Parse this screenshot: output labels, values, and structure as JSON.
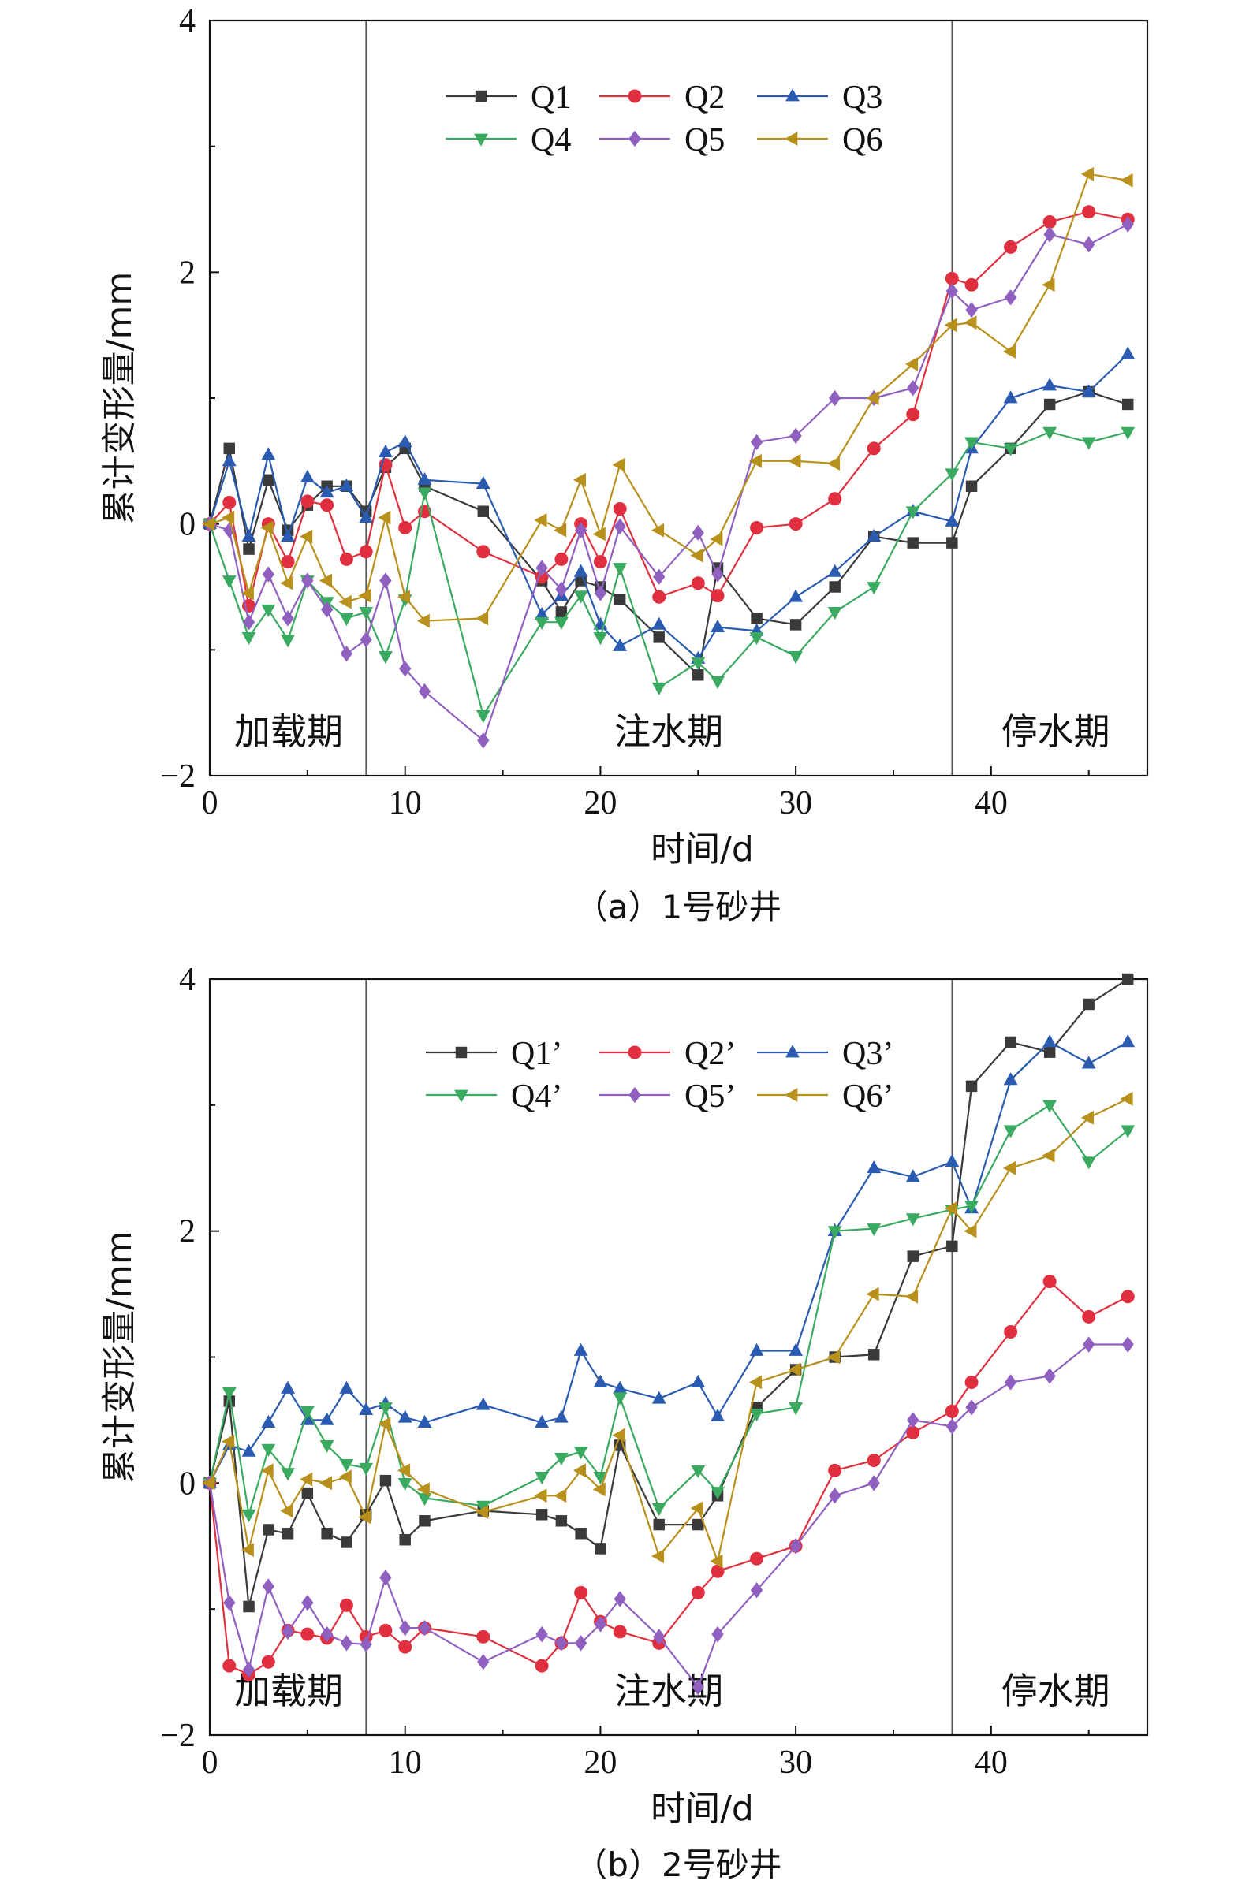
{
  "chart_data": [
    {
      "type": "line",
      "caption": "（a）1号砂井",
      "xlabel": "时间/d",
      "ylabel": "累计变形量/mm",
      "xlim": [
        0,
        48
      ],
      "ylim": [
        -2,
        4
      ],
      "xticks": [
        0,
        10,
        20,
        30,
        40
      ],
      "yticks": [
        -2,
        0,
        2,
        4
      ],
      "phase_boundaries": [
        8,
        38
      ],
      "phases": [
        "加载期",
        "注水期",
        "停水期"
      ],
      "legend_position": "top-center",
      "series": [
        {
          "name": "Q1",
          "color": "#3a3a3a",
          "marker": "square",
          "x": [
            0,
            1,
            2,
            3,
            4,
            5,
            6,
            7,
            8,
            9,
            10,
            11,
            14,
            17,
            18,
            19,
            20,
            21,
            23,
            25,
            26,
            28,
            30,
            32,
            34,
            36,
            38,
            39,
            41,
            43,
            45,
            47
          ],
          "y": [
            0,
            0.6,
            -0.2,
            0.35,
            -0.05,
            0.15,
            0.3,
            0.3,
            0.1,
            0.45,
            0.6,
            0.3,
            0.1,
            -0.45,
            -0.7,
            -0.45,
            -0.5,
            -0.6,
            -0.9,
            -1.2,
            -0.35,
            -0.75,
            -0.8,
            -0.5,
            -0.1,
            -0.15,
            -0.15,
            0.3,
            0.6,
            0.95,
            1.05,
            0.95
          ]
        },
        {
          "name": "Q2",
          "color": "#e03040",
          "marker": "circle",
          "x": [
            0,
            1,
            2,
            3,
            4,
            5,
            6,
            7,
            8,
            9,
            10,
            11,
            14,
            17,
            18,
            19,
            20,
            21,
            23,
            25,
            26,
            28,
            30,
            32,
            34,
            36,
            38,
            39,
            41,
            43,
            45,
            47
          ],
          "y": [
            0,
            0.17,
            -0.65,
            0.0,
            -0.3,
            0.18,
            0.15,
            -0.28,
            -0.22,
            0.47,
            -0.03,
            0.1,
            -0.22,
            -0.42,
            -0.28,
            0.0,
            -0.3,
            0.12,
            -0.58,
            -0.47,
            -0.57,
            -0.03,
            0.0,
            0.2,
            0.6,
            0.87,
            1.95,
            1.9,
            2.2,
            2.4,
            2.48,
            2.42
          ]
        },
        {
          "name": "Q3",
          "color": "#2a5bb0",
          "marker": "triangle-up",
          "x": [
            0,
            1,
            2,
            3,
            4,
            5,
            6,
            7,
            8,
            9,
            10,
            11,
            14,
            17,
            18,
            19,
            20,
            21,
            23,
            25,
            26,
            28,
            30,
            32,
            34,
            36,
            38,
            39,
            41,
            43,
            45,
            47
          ],
          "y": [
            0,
            0.5,
            -0.1,
            0.55,
            -0.1,
            0.37,
            0.25,
            0.3,
            0.05,
            0.57,
            0.65,
            0.35,
            0.32,
            -0.72,
            -0.57,
            -0.38,
            -0.8,
            -0.97,
            -0.8,
            -1.07,
            -0.82,
            -0.85,
            -0.58,
            -0.38,
            -0.1,
            0.1,
            0.02,
            0.6,
            1.0,
            1.1,
            1.05,
            1.35
          ]
        },
        {
          "name": "Q4",
          "color": "#3aaa60",
          "marker": "triangle-down",
          "x": [
            0,
            1,
            2,
            3,
            4,
            5,
            6,
            7,
            8,
            9,
            10,
            11,
            14,
            17,
            18,
            19,
            20,
            21,
            23,
            25,
            26,
            28,
            30,
            32,
            34,
            36,
            38,
            39,
            41,
            43,
            45,
            47
          ],
          "y": [
            0,
            -0.45,
            -0.9,
            -0.68,
            -0.92,
            -0.45,
            -0.62,
            -0.75,
            -0.7,
            -1.05,
            -0.6,
            0.25,
            -1.52,
            -0.78,
            -0.78,
            -0.57,
            -0.9,
            -0.35,
            -1.3,
            -1.1,
            -1.25,
            -0.9,
            -1.05,
            -0.7,
            -0.5,
            0.1,
            0.4,
            0.65,
            0.6,
            0.73,
            0.65,
            0.73
          ]
        },
        {
          "name": "Q5",
          "color": "#9060c0",
          "marker": "diamond",
          "x": [
            0,
            1,
            2,
            3,
            4,
            5,
            6,
            7,
            8,
            9,
            10,
            11,
            14,
            17,
            18,
            19,
            20,
            21,
            23,
            25,
            26,
            28,
            30,
            32,
            34,
            36,
            38,
            39,
            41,
            43,
            45,
            47
          ],
          "y": [
            0,
            -0.05,
            -0.78,
            -0.4,
            -0.75,
            -0.45,
            -0.68,
            -1.03,
            -0.92,
            -0.45,
            -1.15,
            -1.33,
            -1.72,
            -0.35,
            -0.52,
            -0.05,
            -0.55,
            -0.02,
            -0.42,
            -0.07,
            -0.4,
            0.65,
            0.7,
            1.0,
            1.0,
            1.08,
            1.85,
            1.7,
            1.8,
            2.3,
            2.22,
            2.38
          ]
        },
        {
          "name": "Q6",
          "color": "#b8901c",
          "marker": "triangle-left",
          "x": [
            0,
            1,
            2,
            3,
            4,
            5,
            6,
            7,
            8,
            9,
            10,
            11,
            14,
            17,
            18,
            19,
            20,
            21,
            23,
            25,
            26,
            28,
            30,
            32,
            34,
            36,
            38,
            39,
            41,
            43,
            45,
            47
          ],
          "y": [
            0,
            0.05,
            -0.55,
            -0.03,
            -0.47,
            -0.1,
            -0.45,
            -0.62,
            -0.57,
            0.05,
            -0.58,
            -0.77,
            -0.75,
            0.03,
            -0.05,
            0.35,
            -0.08,
            0.47,
            -0.05,
            -0.25,
            -0.12,
            0.5,
            0.5,
            0.48,
            1.0,
            1.27,
            1.58,
            1.6,
            1.37,
            1.9,
            2.78,
            2.73
          ]
        }
      ]
    },
    {
      "type": "line",
      "caption": "（b）2号砂井",
      "xlabel": "时间/d",
      "ylabel": "累计变形量/mm",
      "xlim": [
        0,
        48
      ],
      "ylim": [
        -2,
        4
      ],
      "xticks": [
        0,
        10,
        20,
        30,
        40
      ],
      "yticks": [
        -2,
        0,
        2,
        4
      ],
      "phase_boundaries": [
        8,
        38
      ],
      "phases": [
        "加载期",
        "注水期",
        "停水期"
      ],
      "legend_position": "top-center",
      "series": [
        {
          "name": "Q1’",
          "color": "#3a3a3a",
          "marker": "square",
          "x": [
            0,
            1,
            2,
            3,
            4,
            5,
            6,
            7,
            8,
            9,
            10,
            11,
            14,
            17,
            18,
            19,
            20,
            21,
            23,
            25,
            26,
            28,
            30,
            32,
            34,
            36,
            38,
            39,
            41,
            43,
            45,
            47
          ],
          "y": [
            0,
            0.65,
            -0.98,
            -0.37,
            -0.4,
            -0.08,
            -0.4,
            -0.47,
            -0.25,
            0.02,
            -0.45,
            -0.3,
            -0.22,
            -0.25,
            -0.3,
            -0.4,
            -0.52,
            0.3,
            -0.33,
            -0.33,
            -0.1,
            0.6,
            0.9,
            1.0,
            1.02,
            1.8,
            1.88,
            3.15,
            3.5,
            3.42,
            3.8,
            4.0
          ]
        },
        {
          "name": "Q2’",
          "color": "#e03040",
          "marker": "circle",
          "x": [
            0,
            1,
            2,
            3,
            4,
            5,
            6,
            7,
            8,
            9,
            10,
            11,
            14,
            17,
            18,
            19,
            20,
            21,
            23,
            25,
            26,
            28,
            30,
            32,
            34,
            36,
            38,
            39,
            41,
            43,
            45,
            47
          ],
          "y": [
            0,
            -1.45,
            -1.52,
            -1.42,
            -1.17,
            -1.2,
            -1.23,
            -0.97,
            -1.22,
            -1.17,
            -1.3,
            -1.15,
            -1.22,
            -1.45,
            -1.27,
            -0.87,
            -1.1,
            -1.18,
            -1.27,
            -0.87,
            -0.7,
            -0.6,
            -0.5,
            0.1,
            0.18,
            0.4,
            0.57,
            0.8,
            1.2,
            1.6,
            1.32,
            1.48
          ]
        },
        {
          "name": "Q3’",
          "color": "#2a5bb0",
          "marker": "triangle-up",
          "x": [
            0,
            1,
            2,
            3,
            4,
            5,
            6,
            7,
            8,
            9,
            10,
            11,
            14,
            17,
            18,
            19,
            20,
            21,
            23,
            25,
            26,
            28,
            30,
            32,
            34,
            36,
            38,
            39,
            41,
            43,
            45,
            47
          ],
          "y": [
            0,
            0.3,
            0.25,
            0.48,
            0.75,
            0.5,
            0.5,
            0.75,
            0.58,
            0.63,
            0.52,
            0.48,
            0.62,
            0.48,
            0.52,
            1.05,
            0.8,
            0.75,
            0.67,
            0.8,
            0.53,
            1.05,
            1.05,
            2.0,
            2.5,
            2.43,
            2.55,
            2.18,
            3.2,
            3.5,
            3.33,
            3.5
          ]
        },
        {
          "name": "Q4’",
          "color": "#3aaa60",
          "marker": "triangle-down",
          "x": [
            0,
            1,
            2,
            3,
            4,
            5,
            6,
            7,
            8,
            9,
            10,
            11,
            14,
            17,
            18,
            19,
            20,
            21,
            23,
            25,
            26,
            28,
            30,
            32,
            34,
            36,
            38,
            39,
            41,
            43,
            45,
            47
          ],
          "y": [
            0,
            0.72,
            -0.25,
            0.27,
            0.08,
            0.57,
            0.3,
            0.15,
            0.12,
            0.6,
            0.0,
            -0.12,
            -0.18,
            0.05,
            0.2,
            0.25,
            0.05,
            0.68,
            -0.2,
            0.1,
            -0.07,
            0.55,
            0.6,
            2.0,
            2.02,
            2.1,
            2.17,
            2.2,
            2.8,
            3.0,
            2.55,
            2.8
          ]
        },
        {
          "name": "Q5’",
          "color": "#9060c0",
          "marker": "diamond",
          "x": [
            0,
            1,
            2,
            3,
            4,
            5,
            6,
            7,
            8,
            9,
            10,
            11,
            14,
            17,
            18,
            19,
            20,
            21,
            23,
            25,
            26,
            28,
            30,
            32,
            34,
            36,
            38,
            39,
            41,
            43,
            45,
            47
          ],
          "y": [
            0,
            -0.95,
            -1.48,
            -0.82,
            -1.18,
            -0.95,
            -1.2,
            -1.27,
            -1.28,
            -0.75,
            -1.15,
            -1.15,
            -1.42,
            -1.2,
            -1.27,
            -1.27,
            -1.12,
            -0.92,
            -1.22,
            -1.62,
            -1.2,
            -0.85,
            -0.5,
            -0.1,
            0.0,
            0.5,
            0.45,
            0.6,
            0.8,
            0.85,
            1.1,
            1.1
          ]
        },
        {
          "name": "Q6’",
          "color": "#b8901c",
          "marker": "triangle-left",
          "x": [
            0,
            1,
            2,
            3,
            4,
            5,
            6,
            7,
            8,
            9,
            10,
            11,
            14,
            17,
            18,
            19,
            20,
            21,
            23,
            25,
            26,
            28,
            30,
            32,
            34,
            36,
            38,
            39,
            41,
            43,
            45,
            47
          ],
          "y": [
            0,
            0.33,
            -0.53,
            0.1,
            -0.22,
            0.03,
            0.0,
            0.05,
            -0.27,
            0.47,
            0.1,
            -0.05,
            -0.23,
            -0.1,
            -0.1,
            0.1,
            -0.05,
            0.38,
            -0.58,
            -0.2,
            -0.62,
            0.8,
            0.9,
            1.0,
            1.5,
            1.48,
            2.18,
            2.0,
            2.5,
            2.6,
            2.9,
            3.05
          ]
        }
      ]
    }
  ]
}
